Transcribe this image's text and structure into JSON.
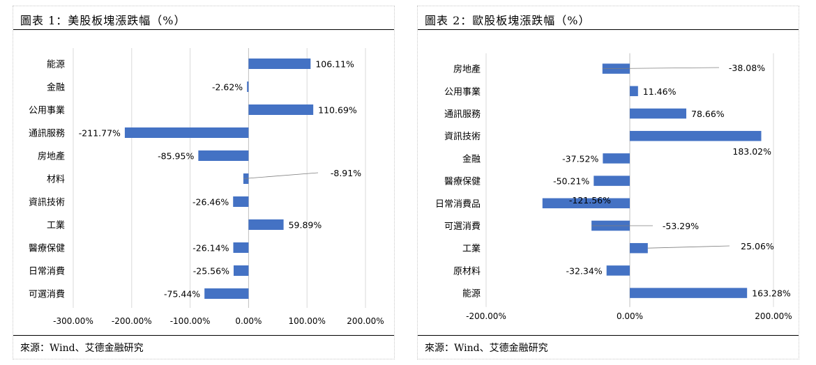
{
  "panels": [
    {
      "title": "圖表 1：美股板塊漲跌幅（%）",
      "source": "來源：Wind、艾德金融研究"
    },
    {
      "title": "圖表 2：歐股板塊漲跌幅（%）",
      "source": "來源：Wind、艾德金融研究"
    }
  ],
  "chart_data": [
    {
      "type": "bar",
      "orientation": "horizontal",
      "title": "圖表 1：美股板塊漲跌幅（%）",
      "categories": [
        "能源",
        "金融",
        "公用事業",
        "通訊服務",
        "房地產",
        "材料",
        "資訊技術",
        "工業",
        "醫療保健",
        "日常消費",
        "可選消費"
      ],
      "values": [
        106.11,
        -2.62,
        110.69,
        -211.77,
        -85.95,
        -8.91,
        -26.46,
        59.89,
        -26.14,
        -25.56,
        -75.44
      ],
      "value_labels": [
        "106.11%",
        "-2.62%",
        "110.69%",
        "-211.77%",
        "-85.95%",
        "-8.91%",
        "-26.46%",
        "59.89%",
        "-26.14%",
        "-25.56%",
        "-75.44%"
      ],
      "xlim": [
        -300,
        200
      ],
      "xticks": [
        -300,
        -200,
        -100,
        0,
        100,
        200
      ],
      "xtick_labels": [
        "-300.00%",
        "-200.00%",
        "-100.00%",
        "0.00%",
        "100.00%",
        "200.00%"
      ],
      "grid": "vertical",
      "color": "#4472c4"
    },
    {
      "type": "bar",
      "orientation": "horizontal",
      "title": "圖表 2：歐股板塊漲跌幅（%）",
      "categories": [
        "房地產",
        "公用事業",
        "通訊服務",
        "資訊技術",
        "金融",
        "醫療保健",
        "日常消費品",
        "可選消費",
        "工業",
        "原材料",
        "能源"
      ],
      "values": [
        -38.08,
        11.46,
        78.66,
        183.02,
        -37.52,
        -50.21,
        -121.56,
        -53.29,
        25.06,
        -32.34,
        163.28
      ],
      "value_labels": [
        "-38.08%",
        "11.46%",
        "78.66%",
        "183.02%",
        "-37.52%",
        "-50.21%",
        "-121.56%",
        "-53.29%",
        "25.06%",
        "-32.34%",
        "163.28%"
      ],
      "xlim": [
        -200,
        200
      ],
      "xticks": [
        -200,
        0,
        200
      ],
      "xtick_labels": [
        "-200.00%",
        "0.00%",
        "200.00%"
      ],
      "grid": "vertical",
      "color": "#4472c4"
    }
  ]
}
